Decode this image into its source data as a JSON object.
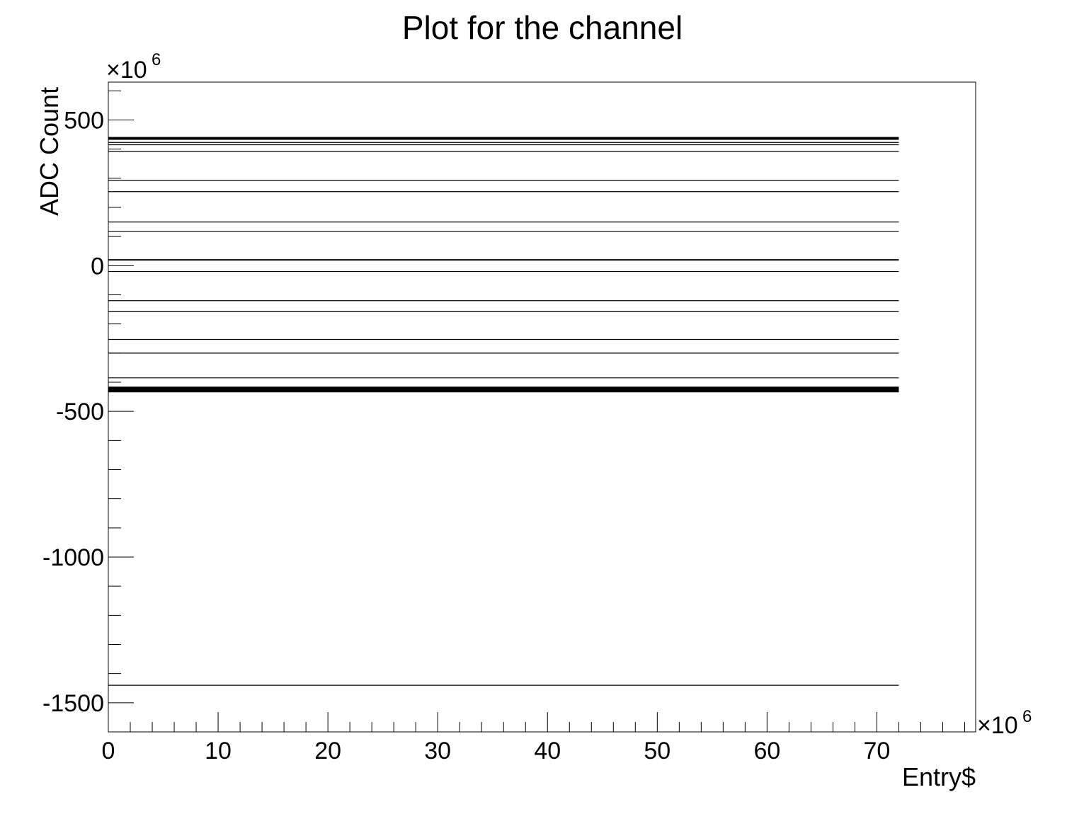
{
  "chart_data": {
    "type": "scatter",
    "title": "Plot for the channel",
    "xlabel": "Entry$",
    "ylabel": "ADC Count",
    "x_exponent_label": "×10",
    "x_exponent": "6",
    "y_exponent_label": "×10",
    "y_exponent": "6",
    "xlim": [
      0,
      79
    ],
    "ylim": [
      -1600,
      630
    ],
    "x_ticks": [
      0,
      10,
      20,
      30,
      40,
      50,
      60,
      70
    ],
    "y_ticks": [
      -1500,
      -1000,
      -500,
      0,
      500
    ],
    "x_data_range": [
      0,
      72
    ],
    "grid": false,
    "color": "#000000",
    "series": [
      {
        "bands": [
          {
            "y": 437,
            "weight": "heavy"
          },
          {
            "y": 423,
            "weight": "normal"
          },
          {
            "y": 415,
            "weight": "normal"
          },
          {
            "y": 392,
            "weight": "normal"
          },
          {
            "y": 293,
            "weight": "normal"
          },
          {
            "y": 254,
            "weight": "normal"
          },
          {
            "y": 150,
            "weight": "normal"
          },
          {
            "y": 117,
            "weight": "normal"
          },
          {
            "y": 20,
            "weight": "medium"
          },
          {
            "y": -20,
            "weight": "normal"
          },
          {
            "y": -120,
            "weight": "normal"
          },
          {
            "y": -158,
            "weight": "normal"
          },
          {
            "y": -253,
            "weight": "normal"
          },
          {
            "y": -300,
            "weight": "normal"
          },
          {
            "y": -385,
            "weight": "normal"
          },
          {
            "y": -425,
            "weight": "very-heavy"
          },
          {
            "y": -1440,
            "weight": "normal"
          }
        ]
      }
    ]
  }
}
